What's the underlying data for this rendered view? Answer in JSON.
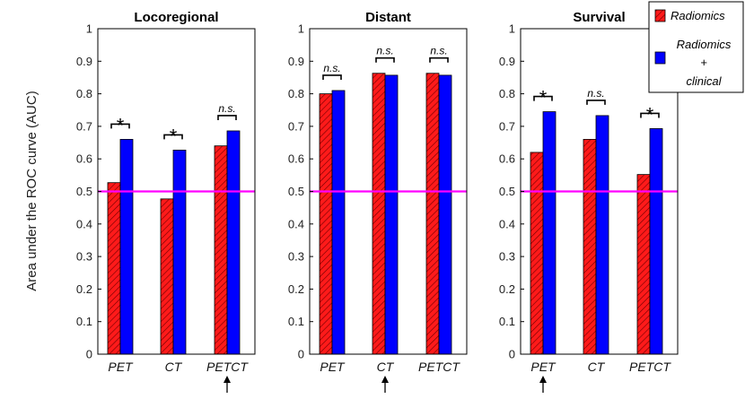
{
  "chart_data": {
    "type": "bar",
    "ylabel": "Area under the ROC curve (AUC)",
    "ylim": [
      0,
      1
    ],
    "yticks": [
      "0",
      "0.1",
      "0.2",
      "0.3",
      "0.4",
      "0.5",
      "0.6",
      "0.7",
      "0.8",
      "0.9",
      "1"
    ],
    "reference_line": {
      "y": 0.5,
      "color": "#ff00ff"
    },
    "legend": {
      "placement": "top-right",
      "items": [
        {
          "label": "Radiomics",
          "color": "#ff1a1a",
          "hatched": true
        },
        {
          "label_lines": [
            "Radiomics",
            "+",
            "clinical"
          ],
          "color": "#0000ff",
          "hatched": false
        }
      ]
    },
    "panels": [
      {
        "title": "Locoregional",
        "categories": [
          "PET",
          "CT",
          "PETCT"
        ],
        "series": [
          {
            "values": [
              0.527,
              0.477,
              0.64
            ],
            "color": "#ff1a1a"
          },
          {
            "values": [
              0.66,
              0.627,
              0.686
            ],
            "color": "#0000ff"
          }
        ],
        "significance": [
          "*",
          "*",
          "n.s."
        ],
        "arrow_index": 2
      },
      {
        "title": "Distant",
        "categories": [
          "PET",
          "CT",
          "PETCT"
        ],
        "series": [
          {
            "values": [
              0.8,
              0.863,
              0.863
            ],
            "color": "#ff1a1a"
          },
          {
            "values": [
              0.81,
              0.857,
              0.857
            ],
            "color": "#0000ff"
          }
        ],
        "significance": [
          "n.s.",
          "n.s.",
          "n.s."
        ],
        "arrow_index": 1
      },
      {
        "title": "Survival",
        "categories": [
          "PET",
          "CT",
          "PETCT"
        ],
        "series": [
          {
            "values": [
              0.62,
              0.66,
              0.552
            ],
            "color": "#ff1a1a"
          },
          {
            "values": [
              0.745,
              0.733,
              0.693
            ],
            "color": "#0000ff"
          }
        ],
        "significance": [
          "*",
          "n.s.",
          "*"
        ],
        "arrow_index": 0
      }
    ]
  }
}
